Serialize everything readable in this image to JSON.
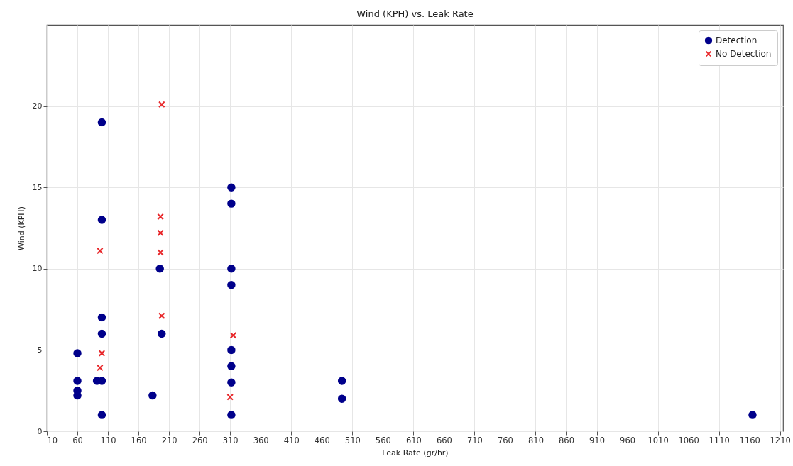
{
  "chart_data": {
    "type": "scatter",
    "title": "Wind (KPH) vs. Leak Rate",
    "xlabel": "Leak Rate (gr/hr)",
    "ylabel": "Wind (KPH)",
    "xlim": [
      10,
      1215
    ],
    "ylim": [
      0,
      25
    ],
    "xticks": [
      10,
      60,
      110,
      160,
      210,
      260,
      310,
      360,
      410,
      460,
      510,
      560,
      610,
      660,
      710,
      760,
      810,
      860,
      910,
      960,
      1010,
      1060,
      1110,
      1160,
      1210
    ],
    "yticks": [
      0,
      5,
      10,
      15,
      20
    ],
    "grid": true,
    "legend": "top right",
    "series": [
      {
        "name": "Detection",
        "color": "#00008b",
        "marker": "circle",
        "x": [
          60,
          60,
          60,
          60,
          100,
          100,
          100,
          100,
          100,
          100,
          92,
          195,
          198,
          183,
          312,
          312,
          312,
          312,
          312,
          312,
          312,
          312,
          493,
          493,
          1165
        ],
        "values": [
          4.8,
          3.1,
          2.5,
          2.2,
          19,
          13,
          7,
          6,
          3.1,
          1,
          3.1,
          10,
          6,
          2.2,
          15,
          14,
          10,
          9,
          5,
          4,
          3,
          1,
          3.1,
          2.0,
          1
        ]
      },
      {
        "name": "No Detection",
        "color": "#e8282b",
        "marker": "cross",
        "x": [
          97,
          100,
          97,
          198,
          196,
          196,
          196,
          198,
          315,
          310
        ],
        "values": [
          11.1,
          4.8,
          3.9,
          20.1,
          13.2,
          12.2,
          11,
          7.1,
          5.9,
          2.1
        ]
      }
    ]
  }
}
